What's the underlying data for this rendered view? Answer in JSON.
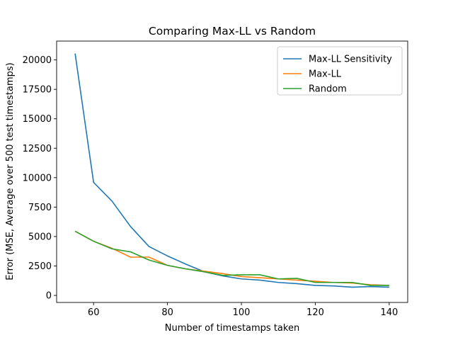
{
  "chart_data": {
    "type": "line",
    "title": "Comparing Max-LL vs Random",
    "xlabel": "Number of timestamps taken",
    "ylabel": "Error (MSE, Average over 500 test timestamps)",
    "xlim": [
      50,
      145
    ],
    "ylim": [
      -600,
      21600
    ],
    "xticks": [
      60,
      80,
      100,
      120,
      140
    ],
    "yticks": [
      0,
      2500,
      5000,
      7500,
      10000,
      12500,
      15000,
      17500,
      20000
    ],
    "grid": false,
    "legend_position": "top-right",
    "x": [
      55,
      60,
      65,
      70,
      75,
      80,
      85,
      90,
      95,
      100,
      105,
      110,
      115,
      120,
      125,
      130,
      135,
      140
    ],
    "series": [
      {
        "name": "Max-LL Sensitivity",
        "color": "#1f77b4",
        "values": [
          20550,
          9600,
          8000,
          5850,
          4150,
          3350,
          2650,
          2000,
          1650,
          1400,
          1300,
          1100,
          1000,
          850,
          800,
          700,
          750,
          700
        ]
      },
      {
        "name": "Max-LL",
        "color": "#ff7f0e",
        "values": [
          5450,
          4600,
          4000,
          3250,
          3250,
          2550,
          2250,
          2050,
          1850,
          1600,
          1500,
          1400,
          1300,
          1200,
          1100,
          1050,
          900,
          850
        ]
      },
      {
        "name": "Random",
        "color": "#2ca02c",
        "values": [
          5450,
          4600,
          3950,
          3700,
          3000,
          2550,
          2250,
          2000,
          1700,
          1750,
          1750,
          1400,
          1450,
          1100,
          1100,
          1100,
          850,
          850
        ]
      }
    ]
  }
}
